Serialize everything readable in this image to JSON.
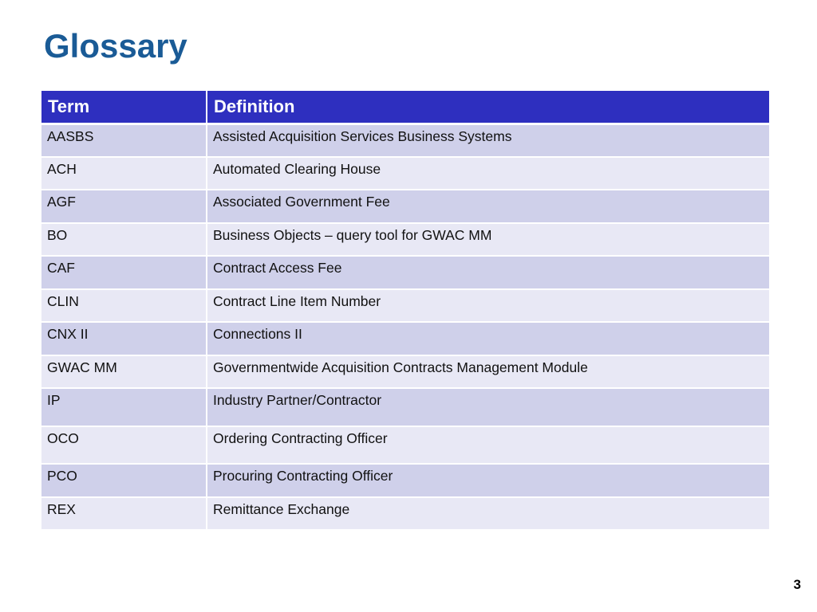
{
  "slide": {
    "title": "Glossary",
    "page_number": "3"
  },
  "table": {
    "headers": [
      "Term",
      "Definition"
    ],
    "rows": [
      {
        "term": "AASBS",
        "definition": "Assisted Acquisition Services Business Systems"
      },
      {
        "term": "ACH",
        "definition": "Automated Clearing House"
      },
      {
        "term": "AGF",
        "definition": "Associated Government Fee"
      },
      {
        "term": "BO",
        "definition": "Business Objects – query tool for GWAC MM"
      },
      {
        "term": "CAF",
        "definition": "Contract Access Fee"
      },
      {
        "term": "CLIN",
        "definition": "Contract Line Item Number"
      },
      {
        "term": "CNX II",
        "definition": "Connections II"
      },
      {
        "term": "GWAC MM",
        "definition": "Governmentwide Acquisition Contracts Management Module"
      },
      {
        "term": "IP",
        "definition": "Industry Partner/Contractor"
      },
      {
        "term": "OCO",
        "definition": "Ordering Contracting Officer"
      },
      {
        "term": "PCO",
        "definition": "Procuring Contracting Officer"
      },
      {
        "term": "REX",
        "definition": "Remittance Exchange"
      }
    ]
  },
  "colors": {
    "title": "#1a5b96",
    "header_background": "#2e2fbf",
    "row_odd": "#cfd0ea",
    "row_even": "#e8e8f5"
  }
}
